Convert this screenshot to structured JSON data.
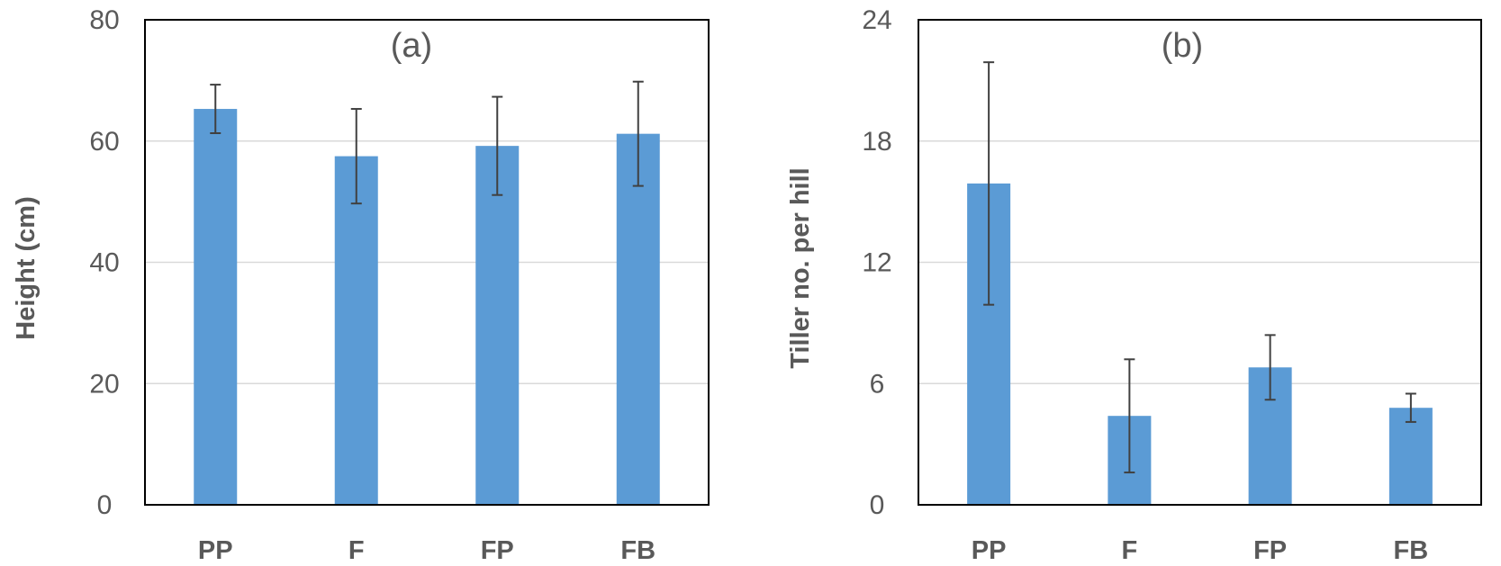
{
  "chart_data": [
    {
      "type": "bar",
      "annotation": "(a)",
      "ylabel": "Height (cm)",
      "ylim": [
        0,
        80
      ],
      "yticks": [
        0,
        20,
        40,
        60,
        80
      ],
      "grid": true,
      "categories": [
        "PP",
        "F",
        "FP",
        "FB"
      ],
      "values": [
        65.3,
        57.5,
        59.2,
        61.2
      ],
      "error": [
        4.0,
        7.8,
        8.1,
        8.6
      ],
      "color": "#5B9BD5"
    },
    {
      "type": "bar",
      "annotation": "(b)",
      "ylabel": "Tiller no. per hill",
      "ylim": [
        0,
        24
      ],
      "yticks": [
        0,
        6,
        12,
        18,
        24
      ],
      "grid": true,
      "categories": [
        "PP",
        "F",
        "FP",
        "FB"
      ],
      "values": [
        15.9,
        4.4,
        6.8,
        4.8
      ],
      "error": [
        6.0,
        2.8,
        1.6,
        0.7
      ],
      "color": "#5B9BD5"
    }
  ]
}
